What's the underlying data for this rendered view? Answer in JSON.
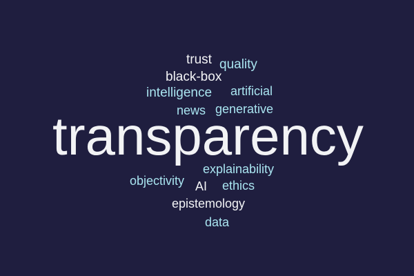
{
  "colors": {
    "background": "#1f1e3f",
    "white_words": "#f2f3f5",
    "cyan_words": "#a9e4f0"
  },
  "words": {
    "trust": "trust",
    "quality": "quality",
    "black_box": "black-box",
    "intelligence": "intelligence",
    "artificial": "artificial",
    "news": "news",
    "generative": "generative",
    "transparency": "transparency",
    "explainability": "explainability",
    "objectivity": "objectivity",
    "ai": "AI",
    "ethics": "ethics",
    "epistemology": "epistemology",
    "data": "data"
  }
}
